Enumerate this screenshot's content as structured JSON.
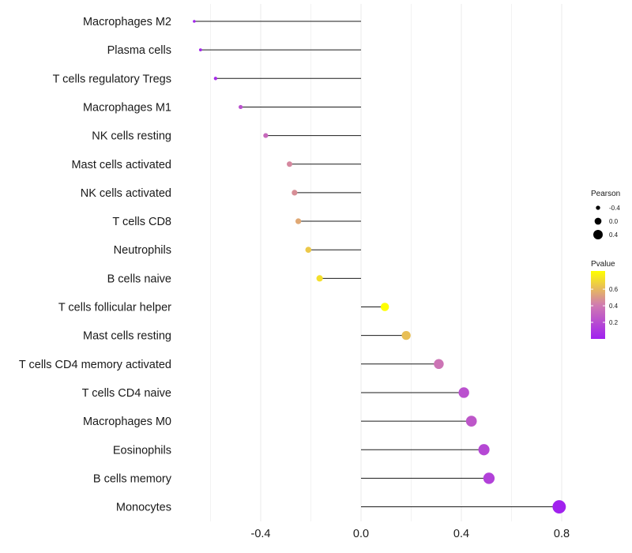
{
  "chart_data": {
    "type": "lollipop",
    "categories": [
      "Macrophages M2",
      "Plasma cells",
      "T cells regulatory  Tregs",
      "Macrophages M1",
      "NK cells resting",
      "Mast cells activated",
      "NK cells activated",
      "T cells CD8",
      "Neutrophils",
      "B cells naive",
      "T cells follicular helper",
      "Mast cells resting",
      "T cells CD4 memory activated",
      "T cells CD4 naive",
      "Macrophages M0",
      "Eosinophils",
      "B cells memory",
      "Monocytes"
    ],
    "values": [
      -0.665,
      -0.64,
      -0.58,
      -0.48,
      -0.38,
      -0.285,
      -0.265,
      -0.25,
      -0.21,
      -0.165,
      0.095,
      0.18,
      0.31,
      0.41,
      0.44,
      0.49,
      0.51,
      0.79
    ],
    "pvalues": [
      0.02,
      0.03,
      0.05,
      0.22,
      0.33,
      0.45,
      0.47,
      0.55,
      0.65,
      0.72,
      0.82,
      0.62,
      0.38,
      0.22,
      0.25,
      0.18,
      0.15,
      0.01
    ],
    "xlim": [
      -0.72,
      0.82
    ],
    "x_ticks": [
      -0.4,
      0.0,
      0.4,
      0.8
    ],
    "x_tick_labels": [
      "-0.4",
      "0.0",
      "0.4",
      "0.8"
    ],
    "title": "",
    "xlabel": "",
    "ylabel": "",
    "grid": true,
    "legend": {
      "position": "right",
      "size_title": "Pearson",
      "size_labels": [
        "-0.4",
        "0.0",
        "0.4"
      ],
      "color_title": "Pvalue",
      "color_labels": [
        "0.6",
        "0.4",
        "0.2"
      ],
      "color_label_values": [
        0.6,
        0.4,
        0.2
      ],
      "color_range": [
        0.0,
        0.82
      ],
      "color_low": "#a020f0",
      "color_mid": "#d07bb0",
      "color_high": "#ffff00"
    }
  }
}
